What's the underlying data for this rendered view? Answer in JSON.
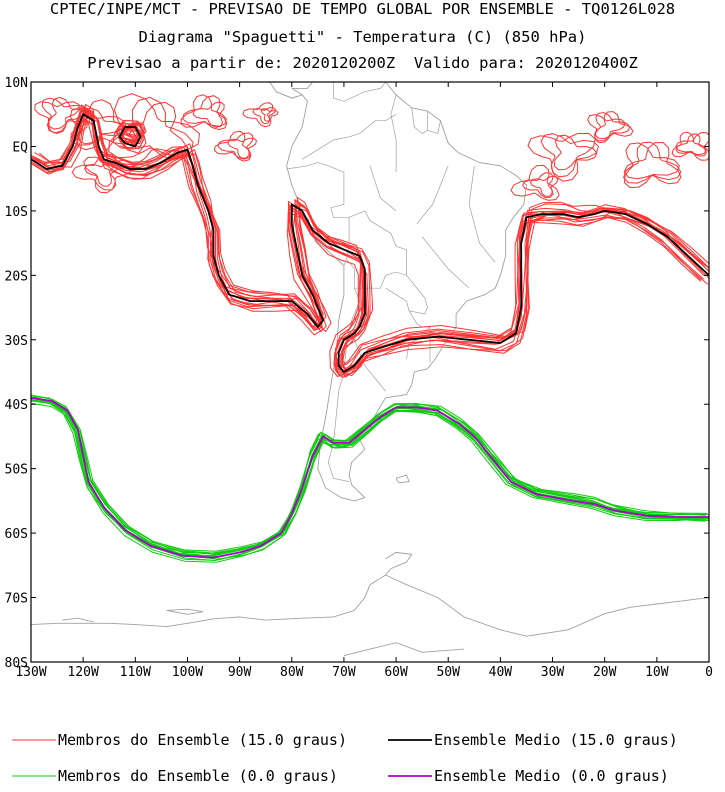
{
  "title": {
    "line1": "CPTEC/INPE/MCT - PREVISAO DE TEMPO GLOBAL POR ENSEMBLE - TQ0126L028",
    "line2": "Diagrama \"Spaguetti\" - Temperatura (C) (850 hPa)",
    "line3": "Previsao a partir de: 2020120200Z  Valido para: 2020120400Z"
  },
  "chart_data": {
    "type": "line",
    "map": "South America and surrounding oceans, spaghetti diagram of 850 hPa temperature isotherms",
    "xlim": [
      -130,
      0
    ],
    "ylim": [
      -80,
      10
    ],
    "x_ticks": [
      {
        "value": -130,
        "label": "130W"
      },
      {
        "value": -120,
        "label": "120W"
      },
      {
        "value": -110,
        "label": "110W"
      },
      {
        "value": -100,
        "label": "100W"
      },
      {
        "value": -90,
        "label": "90W"
      },
      {
        "value": -80,
        "label": "80W"
      },
      {
        "value": -70,
        "label": "70W"
      },
      {
        "value": -60,
        "label": "60W"
      },
      {
        "value": -50,
        "label": "50W"
      },
      {
        "value": -40,
        "label": "40W"
      },
      {
        "value": -30,
        "label": "30W"
      },
      {
        "value": -20,
        "label": "20W"
      },
      {
        "value": -10,
        "label": "10W"
      },
      {
        "value": 0,
        "label": "0"
      }
    ],
    "y_ticks": [
      {
        "value": 10,
        "label": "10N"
      },
      {
        "value": 0,
        "label": "EQ"
      },
      {
        "value": -10,
        "label": "10S"
      },
      {
        "value": -20,
        "label": "20S"
      },
      {
        "value": -30,
        "label": "30S"
      },
      {
        "value": -40,
        "label": "40S"
      },
      {
        "value": -50,
        "label": "50S"
      },
      {
        "value": -60,
        "label": "60S"
      },
      {
        "value": -70,
        "label": "70S"
      },
      {
        "value": -80,
        "label": "80S"
      }
    ],
    "colors": {
      "members_15": "#ff3333",
      "mean_15": "#000000",
      "members_0": "#11cc11",
      "mean_0": "#aa00cc",
      "coast": "#a0a0a0"
    },
    "series": [
      {
        "name": "Ensemble Medio (15.0 graus)",
        "segments": [
          [
            [
              -130,
              -2
            ],
            [
              -127,
              -3.5
            ],
            [
              -124,
              -3
            ],
            [
              -122,
              0
            ],
            [
              -121,
              3
            ],
            [
              -120,
              5
            ],
            [
              -118,
              4
            ],
            [
              -117,
              0
            ],
            [
              -116,
              -2
            ],
            [
              -114,
              -2.5
            ],
            [
              -111,
              -3.5
            ],
            [
              -108,
              -3.5
            ],
            [
              -105,
              -2.5
            ],
            [
              -102,
              -1
            ],
            [
              -100,
              -0.5
            ],
            [
              -99,
              -3
            ],
            [
              -98,
              -6
            ],
            [
              -96,
              -10
            ],
            [
              -95,
              -13
            ],
            [
              -95,
              -17
            ],
            [
              -94,
              -20
            ],
            [
              -92,
              -23
            ],
            [
              -88,
              -24
            ],
            [
              -84,
              -24
            ],
            [
              -80,
              -24
            ],
            [
              -77,
              -26
            ],
            [
              -75,
              -28
            ],
            [
              -74,
              -27
            ],
            [
              -75,
              -25
            ],
            [
              -76,
              -23
            ],
            [
              -78,
              -20
            ],
            [
              -79,
              -16
            ],
            [
              -80,
              -12
            ],
            [
              -80,
              -9
            ],
            [
              -78,
              -10
            ],
            [
              -76,
              -13
            ],
            [
              -73,
              -15
            ],
            [
              -70,
              -16
            ],
            [
              -67,
              -17
            ],
            [
              -66,
              -19
            ],
            [
              -66,
              -23
            ],
            [
              -66,
              -26
            ],
            [
              -67,
              -28
            ],
            [
              -68,
              -29
            ],
            [
              -70,
              -30
            ],
            [
              -71,
              -32
            ],
            [
              -71,
              -34
            ],
            [
              -70,
              -35
            ],
            [
              -68,
              -34
            ],
            [
              -66,
              -32
            ],
            [
              -62,
              -31
            ],
            [
              -58,
              -30
            ],
            [
              -52,
              -29.5
            ],
            [
              -46,
              -30
            ],
            [
              -40,
              -30.5
            ],
            [
              -37,
              -29
            ],
            [
              -36,
              -25
            ],
            [
              -36,
              -20
            ],
            [
              -36,
              -15
            ],
            [
              -35,
              -11
            ],
            [
              -32,
              -10.5
            ],
            [
              -28,
              -10.5
            ],
            [
              -25,
              -11
            ],
            [
              -22,
              -10.5
            ],
            [
              -20,
              -10
            ],
            [
              -16,
              -10.5
            ],
            [
              -12,
              -12
            ],
            [
              -8,
              -14
            ],
            [
              -4,
              -17
            ],
            [
              0,
              -20
            ]
          ],
          [
            [
              -112,
              0.5
            ],
            [
              -113,
              1.5
            ],
            [
              -112,
              3
            ],
            [
              -110,
              3
            ],
            [
              -109,
              1.5
            ],
            [
              -110,
              0
            ],
            [
              -112,
              0.5
            ]
          ]
        ]
      },
      {
        "name": "Ensemble Medio (0.0 graus)",
        "segments": [
          [
            [
              -130,
              -39
            ],
            [
              -126,
              -39.5
            ],
            [
              -123,
              -41
            ],
            [
              -121,
              -44
            ],
            [
              -120,
              -48
            ],
            [
              -119,
              -52
            ],
            [
              -116,
              -56
            ],
            [
              -112,
              -59.5
            ],
            [
              -107,
              -62
            ],
            [
              -101,
              -63.5
            ],
            [
              -95,
              -63.8
            ],
            [
              -90,
              -63
            ],
            [
              -86,
              -62
            ],
            [
              -82,
              -60
            ],
            [
              -80,
              -57
            ],
            [
              -78,
              -53
            ],
            [
              -76,
              -48
            ],
            [
              -74,
              -45
            ],
            [
              -72,
              -46
            ],
            [
              -69,
              -46
            ],
            [
              -66,
              -44
            ],
            [
              -63,
              -42
            ],
            [
              -60,
              -40.5
            ],
            [
              -56,
              -40.5
            ],
            [
              -52,
              -41
            ],
            [
              -48,
              -43
            ],
            [
              -45,
              -45
            ],
            [
              -42,
              -48
            ],
            [
              -38,
              -52
            ],
            [
              -33,
              -54
            ],
            [
              -26,
              -55
            ],
            [
              -22,
              -55.5
            ],
            [
              -18,
              -56.5
            ],
            [
              -12,
              -57.3
            ],
            [
              -6,
              -57.5
            ],
            [
              0,
              -57.5
            ]
          ]
        ]
      }
    ],
    "member_series": [
      {
        "name": "Membros do Ensemble (15.0 graus)",
        "base": "Ensemble Medio (15.0 graus)",
        "count": 14
      },
      {
        "name": "Membros do Ensemble (0.0 graus)",
        "base": "Ensemble Medio (0.0 graus)",
        "count": 14
      }
    ],
    "legend": {
      "placement": "bottom",
      "entries": [
        {
          "label": "Membros do Ensemble (15.0 graus)",
          "color": "#ff3333"
        },
        {
          "label": "Ensemble Medio (15.0 graus)",
          "color": "#000000"
        },
        {
          "label": "Membros do Ensemble (0.0 graus)",
          "color": "#11cc11"
        },
        {
          "label": "Ensemble Medio (0.0 graus)",
          "color": "#aa00cc"
        }
      ]
    }
  }
}
